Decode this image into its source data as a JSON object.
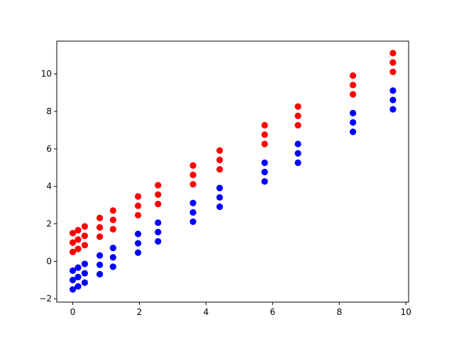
{
  "chart_data": {
    "type": "scatter",
    "title": "",
    "xlabel": "",
    "ylabel": "",
    "xlim": [
      -0.48,
      10.08
    ],
    "ylim": [
      -2.18,
      11.75
    ],
    "xticks": [
      0,
      2,
      4,
      6,
      8,
      10
    ],
    "yticks": [
      -2,
      0,
      2,
      4,
      6,
      8,
      10
    ],
    "grid": false,
    "legend": "none",
    "x": [
      0.0,
      0.16,
      0.36,
      0.81,
      1.21,
      1.96,
      2.56,
      3.61,
      4.41,
      5.76,
      6.76,
      8.41,
      9.61
    ],
    "series": [
      {
        "color": "#ff0000",
        "points": [
          [
            0.0,
            0.5
          ],
          [
            0.0,
            1.0
          ],
          [
            0.0,
            1.5
          ],
          [
            0.16,
            0.66
          ],
          [
            0.16,
            1.16
          ],
          [
            0.16,
            1.66
          ],
          [
            0.36,
            0.86
          ],
          [
            0.36,
            1.36
          ],
          [
            0.36,
            1.86
          ],
          [
            0.81,
            1.31
          ],
          [
            0.81,
            1.81
          ],
          [
            0.81,
            2.31
          ],
          [
            1.21,
            1.71
          ],
          [
            1.21,
            2.21
          ],
          [
            1.21,
            2.71
          ],
          [
            1.96,
            2.46
          ],
          [
            1.96,
            2.96
          ],
          [
            1.96,
            3.46
          ],
          [
            2.56,
            3.06
          ],
          [
            2.56,
            3.56
          ],
          [
            2.56,
            4.06
          ],
          [
            3.61,
            4.11
          ],
          [
            3.61,
            4.61
          ],
          [
            3.61,
            5.11
          ],
          [
            4.41,
            4.91
          ],
          [
            4.41,
            5.41
          ],
          [
            4.41,
            5.91
          ],
          [
            5.76,
            6.26
          ],
          [
            5.76,
            6.76
          ],
          [
            5.76,
            7.26
          ],
          [
            6.76,
            7.26
          ],
          [
            6.76,
            7.76
          ],
          [
            6.76,
            8.26
          ],
          [
            8.41,
            8.91
          ],
          [
            8.41,
            9.41
          ],
          [
            8.41,
            9.91
          ],
          [
            9.61,
            10.11
          ],
          [
            9.61,
            10.61
          ],
          [
            9.61,
            11.11
          ]
        ]
      },
      {
        "color": "#0000ff",
        "points": [
          [
            0.0,
            -1.5
          ],
          [
            0.0,
            -1.0
          ],
          [
            0.0,
            -0.5
          ],
          [
            0.16,
            -1.34
          ],
          [
            0.16,
            -0.84
          ],
          [
            0.16,
            -0.34
          ],
          [
            0.36,
            -1.14
          ],
          [
            0.36,
            -0.64
          ],
          [
            0.36,
            -0.14
          ],
          [
            0.81,
            -0.69
          ],
          [
            0.81,
            -0.19
          ],
          [
            0.81,
            0.31
          ],
          [
            1.21,
            -0.29
          ],
          [
            1.21,
            0.21
          ],
          [
            1.21,
            0.71
          ],
          [
            1.96,
            0.46
          ],
          [
            1.96,
            0.96
          ],
          [
            1.96,
            1.46
          ],
          [
            2.56,
            1.06
          ],
          [
            2.56,
            1.56
          ],
          [
            2.56,
            2.06
          ],
          [
            3.61,
            2.11
          ],
          [
            3.61,
            2.61
          ],
          [
            3.61,
            3.11
          ],
          [
            4.41,
            2.91
          ],
          [
            4.41,
            3.41
          ],
          [
            4.41,
            3.91
          ],
          [
            5.76,
            4.26
          ],
          [
            5.76,
            4.76
          ],
          [
            5.76,
            5.26
          ],
          [
            6.76,
            5.26
          ],
          [
            6.76,
            5.76
          ],
          [
            6.76,
            6.26
          ],
          [
            8.41,
            6.91
          ],
          [
            8.41,
            7.41
          ],
          [
            8.41,
            7.91
          ],
          [
            9.61,
            8.11
          ],
          [
            9.61,
            8.61
          ],
          [
            9.61,
            9.11
          ]
        ]
      }
    ]
  }
}
